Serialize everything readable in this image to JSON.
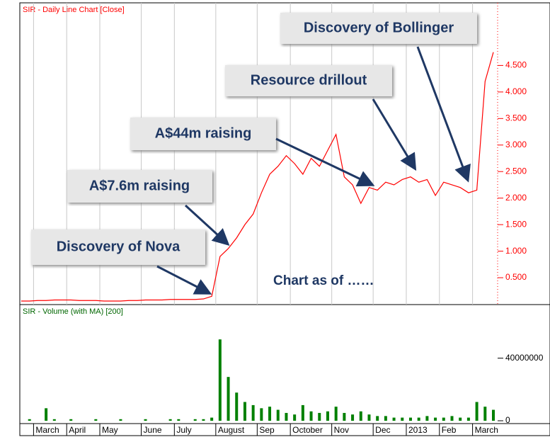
{
  "chart_data": [
    {
      "type": "line",
      "title": "SIR - Daily Line Chart [Close]",
      "color": "#ff0000",
      "values": [
        0.06,
        0.06,
        0.07,
        0.07,
        0.08,
        0.08,
        0.08,
        0.07,
        0.07,
        0.07,
        0.06,
        0.06,
        0.06,
        0.07,
        0.07,
        0.08,
        0.08,
        0.08,
        0.09,
        0.09,
        0.09,
        0.09,
        0.1,
        0.15,
        0.9,
        1.05,
        1.25,
        1.5,
        1.7,
        2.1,
        2.45,
        2.6,
        2.8,
        2.65,
        2.45,
        2.75,
        2.6,
        2.9,
        3.2,
        2.4,
        2.25,
        1.9,
        2.2,
        2.15,
        2.3,
        2.25,
        2.35,
        2.4,
        2.3,
        2.35,
        2.05,
        2.3,
        2.25,
        2.2,
        2.1,
        2.15,
        4.2,
        4.75
      ],
      "ylim": [
        0,
        5.6
      ],
      "yticks": [
        {
          "value": 0.5,
          "label": "0.500"
        },
        {
          "value": 1,
          "label": "1.000"
        },
        {
          "value": 1.5,
          "label": "1.500"
        },
        {
          "value": 2,
          "label": "2.000"
        },
        {
          "value": 2.5,
          "label": "2.500"
        },
        {
          "value": 3,
          "label": "3.000"
        },
        {
          "value": 3.5,
          "label": "3.500"
        },
        {
          "value": 4,
          "label": "4.000"
        },
        {
          "value": 4.5,
          "label": "4.500"
        }
      ],
      "grid": true,
      "annotations": [
        "Discovery of Bollinger",
        "Resource drillout",
        "A$44m raising",
        "A$7.6m raising",
        "Discovery of Nova",
        "Chart as of ……"
      ]
    },
    {
      "type": "bar",
      "title": "SIR - Volume (with MA) [200]",
      "color": "#008000",
      "categories": [
        null,
        null,
        "March",
        null,
        null,
        null,
        "April",
        null,
        null,
        null,
        "May",
        null,
        null,
        null,
        null,
        "June",
        null,
        null,
        null,
        "July",
        null,
        null,
        null,
        null,
        "August",
        null,
        null,
        null,
        null,
        "Sep",
        null,
        null,
        null,
        "October",
        null,
        null,
        null,
        null,
        "Nov",
        null,
        null,
        null,
        null,
        "Dec",
        null,
        null,
        null,
        "2013",
        null,
        null,
        null,
        "Feb",
        null,
        null,
        null,
        "March",
        null,
        null
      ],
      "values": [
        0,
        1000000,
        0,
        8000000,
        1000000,
        0,
        1000000,
        0,
        0,
        1000000,
        0,
        0,
        1000000,
        0,
        0,
        1000000,
        0,
        0,
        1000000,
        1000000,
        0,
        1000000,
        1000000,
        2000000,
        52000000,
        28000000,
        18000000,
        12000000,
        10000000,
        8000000,
        9000000,
        7000000,
        5000000,
        4000000,
        10000000,
        6000000,
        5000000,
        6000000,
        9000000,
        5000000,
        4000000,
        6000000,
        4000000,
        3000000,
        3000000,
        2000000,
        2000000,
        2000000,
        2000000,
        3000000,
        2000000,
        2000000,
        3000000,
        2000000,
        2000000,
        12000000,
        9000000,
        7000000
      ],
      "ylim": [
        0,
        72000000
      ],
      "yticks": [
        0,
        40000000
      ]
    }
  ]
}
